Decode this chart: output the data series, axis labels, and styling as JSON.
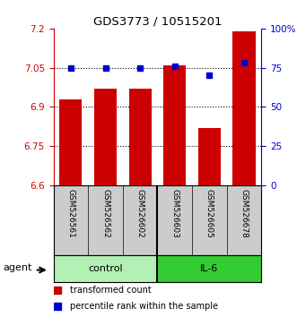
{
  "title": "GDS3773 / 10515201",
  "samples": [
    "GSM526561",
    "GSM526562",
    "GSM526602",
    "GSM526603",
    "GSM526605",
    "GSM526678"
  ],
  "bar_values": [
    6.93,
    6.97,
    6.97,
    7.06,
    6.82,
    7.19
  ],
  "percentile_values": [
    75,
    75,
    75,
    76,
    70,
    78
  ],
  "groups": [
    {
      "label": "control",
      "color": "#b3f0b3",
      "span": [
        0,
        3
      ]
    },
    {
      "label": "IL-6",
      "color": "#33cc33",
      "span": [
        3,
        6
      ]
    }
  ],
  "bar_color": "#cc0000",
  "dot_color": "#0000cc",
  "ylim_left": [
    6.6,
    7.2
  ],
  "ylim_right": [
    0,
    100
  ],
  "yticks_left": [
    6.6,
    6.75,
    6.9,
    7.05,
    7.2
  ],
  "ytick_labels_left": [
    "6.6",
    "6.75",
    "6.9",
    "7.05",
    "7.2"
  ],
  "yticks_right": [
    0,
    25,
    50,
    75,
    100
  ],
  "ytick_labels_right": [
    "0",
    "25",
    "50",
    "75",
    "100%"
  ],
  "hlines": [
    6.75,
    6.9,
    7.05
  ],
  "left_axis_color": "#cc0000",
  "right_axis_color": "#0000cc",
  "legend_items": [
    {
      "label": "transformed count",
      "color": "#cc0000"
    },
    {
      "label": "percentile rank within the sample",
      "color": "#0000cc"
    }
  ],
  "agent_label": "agent",
  "bar_width": 0.65,
  "figsize": [
    3.31,
    3.54
  ],
  "dpi": 100
}
